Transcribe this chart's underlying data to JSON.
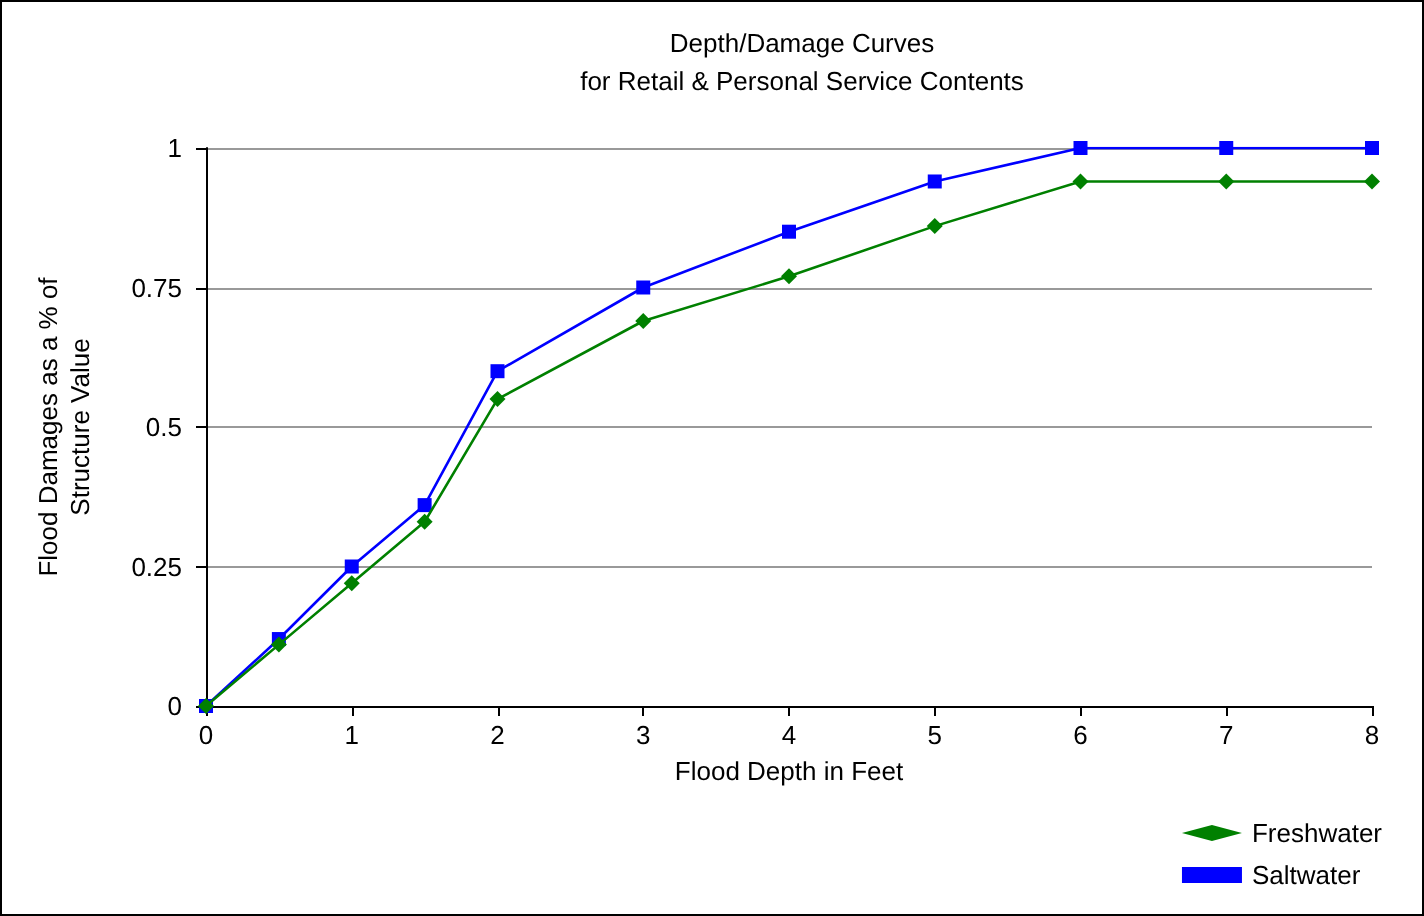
{
  "chart_data": {
    "type": "line",
    "title": "Depth/Damage Curves\nfor Retail & Personal Service Contents",
    "xlabel": "Flood Depth in Feet",
    "ylabel": "Flood Damages as a % of\nStructure Value",
    "x": [
      0,
      0.5,
      1,
      1.5,
      2,
      3,
      4,
      5,
      6,
      7,
      8
    ],
    "series": [
      {
        "name": "Freshwater",
        "color": "#008000",
        "marker": "diamond",
        "values": [
          0,
          0.11,
          0.22,
          0.33,
          0.55,
          0.69,
          0.77,
          0.86,
          0.94,
          0.94,
          0.94
        ]
      },
      {
        "name": "Saltwater",
        "color": "#0000ff",
        "marker": "square",
        "values": [
          0,
          0.12,
          0.25,
          0.36,
          0.6,
          0.75,
          0.85,
          0.94,
          1,
          1,
          1
        ]
      }
    ],
    "xlim": [
      0,
      8
    ],
    "xticks": [
      0,
      1,
      2,
      3,
      4,
      5,
      6,
      7,
      8
    ],
    "ylim": [
      0,
      1
    ],
    "yticks": [
      0,
      0.25,
      0.5,
      0.75,
      1
    ],
    "grid": "y",
    "legend": "bottom right",
    "line_style": "solid"
  }
}
